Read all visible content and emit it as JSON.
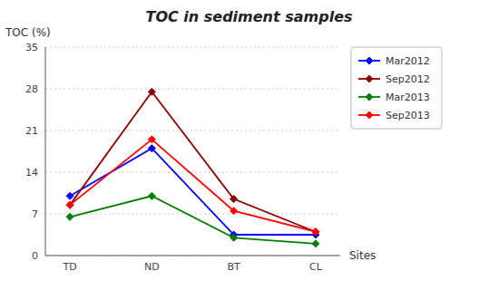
{
  "chart_data": {
    "type": "line",
    "title": "TOC in sediment samples",
    "y_label": "TOC (%)",
    "x_label": "Sites",
    "categories": [
      "TD",
      "ND",
      "BT",
      "CL"
    ],
    "series": [
      {
        "name": "Mar2012",
        "color": "#0000FF",
        "marker": "diamond",
        "values": [
          10.0,
          18.0,
          3.5,
          3.5
        ]
      },
      {
        "name": "Sep2012",
        "color": "#8B0000",
        "marker": "diamond",
        "values": [
          8.5,
          27.5,
          9.5,
          4.0
        ]
      },
      {
        "name": "Mar2013",
        "color": "#008000",
        "marker": "diamond",
        "values": [
          6.5,
          10.0,
          3.0,
          2.0
        ]
      },
      {
        "name": "Sep2013",
        "color": "#FF0000",
        "marker": "diamond",
        "values": [
          8.5,
          19.5,
          7.5,
          4.0
        ]
      }
    ],
    "ylim": [
      0,
      35
    ],
    "yticks": [
      0,
      7,
      14,
      21,
      28,
      35
    ],
    "grid": true,
    "legend": "right"
  }
}
